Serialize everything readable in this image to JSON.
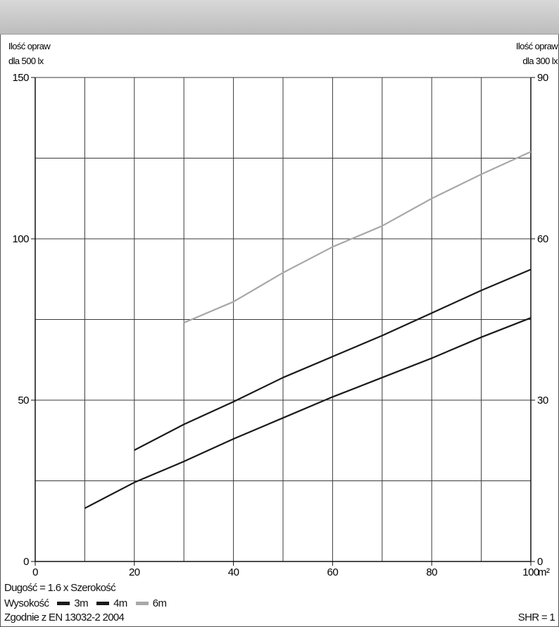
{
  "chart_data": {
    "type": "line",
    "left_axis_title": [
      "Ilość opraw",
      "dla 500 lx"
    ],
    "right_axis_title": [
      "Ilość opraw",
      "dla 300 lx"
    ],
    "x_unit": "m²",
    "x_ticks": [
      0,
      20,
      40,
      60,
      80,
      100
    ],
    "x_range": [
      0,
      100
    ],
    "y_left_ticks": [
      0,
      50,
      100,
      150
    ],
    "y_left_range": [
      0,
      150
    ],
    "y_right_ticks": [
      0,
      30,
      60,
      90
    ],
    "y_right_range": [
      0,
      90
    ],
    "grid": true,
    "series": [
      {
        "name": "3m",
        "color": "#1a1a1a",
        "x": [
          10,
          20,
          30,
          40,
          50,
          60,
          70,
          80,
          90,
          100
        ],
        "y": [
          16.5,
          24.5,
          31,
          38,
          44.5,
          51,
          57,
          63,
          69.5,
          75.5
        ]
      },
      {
        "name": "4m",
        "color": "#1a1a1a",
        "x": [
          20,
          30,
          40,
          50,
          60,
          70,
          80,
          90,
          100
        ],
        "y": [
          34.5,
          42.5,
          49.5,
          57,
          63.5,
          70,
          77,
          84,
          90.5
        ]
      },
      {
        "name": "6m",
        "color": "#a8a8a8",
        "x": [
          30,
          40,
          50,
          60,
          70,
          80,
          90,
          100
        ],
        "y": [
          74,
          80.5,
          89.5,
          97.5,
          104,
          112.5,
          120,
          127
        ]
      }
    ]
  },
  "footer": {
    "dimension_note": "Dugość = 1.6 x Szerokość",
    "height_label": "Wysokość",
    "compliance": "Zgodnie z EN 13032-2 2004",
    "shr": "SHR = 1"
  }
}
